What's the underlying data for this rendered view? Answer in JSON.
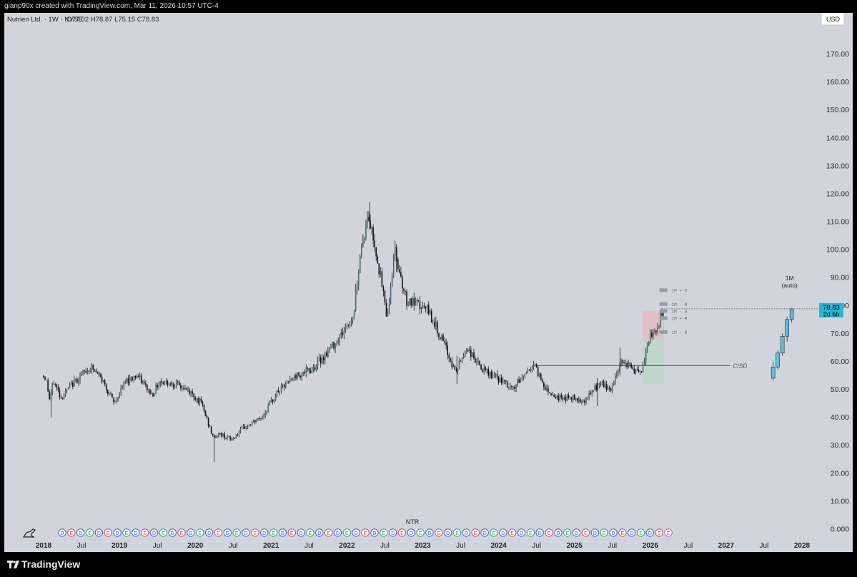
{
  "header": {
    "credit": "gianp90x created with TradingView.com, Mar 11, 2026 10:57 UTC-4"
  },
  "chart_data": {
    "type": "candlestick",
    "symbol_line": "Nutrien Ltd. · 1W · NYSE",
    "ohlc_label": "O77.02  H78.87  L75.15  C78.83",
    "currency": "USD",
    "ylim": [
      0,
      175
    ],
    "y_ticks": [
      "170.00",
      "160.00",
      "150.00",
      "140.00",
      "130.00",
      "120.00",
      "110.00",
      "100.00",
      "90.00",
      "80.00",
      "70.00",
      "60.00",
      "50.00",
      "40.00",
      "30.00",
      "20.00",
      "10.00",
      "0.000"
    ],
    "y_tick_values": [
      170,
      160,
      150,
      140,
      130,
      120,
      110,
      100,
      90,
      80,
      70,
      60,
      50,
      40,
      30,
      20,
      10,
      0
    ],
    "x_ticks": [
      {
        "label": "2018",
        "t": 2018.0,
        "bold": true
      },
      {
        "label": "Jul",
        "t": 2018.5,
        "bold": false
      },
      {
        "label": "2019",
        "t": 2019.0,
        "bold": true
      },
      {
        "label": "Jul",
        "t": 2019.5,
        "bold": false
      },
      {
        "label": "2020",
        "t": 2020.0,
        "bold": true
      },
      {
        "label": "Jul",
        "t": 2020.5,
        "bold": false
      },
      {
        "label": "2021",
        "t": 2021.0,
        "bold": true
      },
      {
        "label": "Jul",
        "t": 2021.5,
        "bold": false
      },
      {
        "label": "2022",
        "t": 2022.0,
        "bold": true
      },
      {
        "label": "Jul",
        "t": 2022.5,
        "bold": false
      },
      {
        "label": "2023",
        "t": 2023.0,
        "bold": true
      },
      {
        "label": "Jul",
        "t": 2023.5,
        "bold": false
      },
      {
        "label": "2024",
        "t": 2024.0,
        "bold": true
      },
      {
        "label": "Jul",
        "t": 2024.5,
        "bold": false
      },
      {
        "label": "2025",
        "t": 2025.0,
        "bold": true
      },
      {
        "label": "Jul",
        "t": 2025.5,
        "bold": false
      },
      {
        "label": "2026",
        "t": 2026.0,
        "bold": true
      },
      {
        "label": "Jul",
        "t": 2026.5,
        "bold": false
      },
      {
        "label": "2027",
        "t": 2027.0,
        "bold": true
      },
      {
        "label": "Jul",
        "t": 2027.5,
        "bold": false
      },
      {
        "label": "2028",
        "t": 2028.0,
        "bold": true
      }
    ],
    "price_path": [
      [
        2018.0,
        55
      ],
      [
        2018.05,
        54
      ],
      [
        2018.1,
        46
      ],
      [
        2018.15,
        53
      ],
      [
        2018.25,
        47
      ],
      [
        2018.4,
        52
      ],
      [
        2018.55,
        56
      ],
      [
        2018.65,
        58
      ],
      [
        2018.8,
        53
      ],
      [
        2018.95,
        45
      ],
      [
        2019.1,
        53
      ],
      [
        2019.25,
        55
      ],
      [
        2019.45,
        48
      ],
      [
        2019.55,
        53
      ],
      [
        2019.75,
        52
      ],
      [
        2019.95,
        49
      ],
      [
        2020.1,
        45
      ],
      [
        2020.25,
        33
      ],
      [
        2020.35,
        34
      ],
      [
        2020.5,
        32
      ],
      [
        2020.65,
        36
      ],
      [
        2020.9,
        40
      ],
      [
        2021.1,
        49
      ],
      [
        2021.35,
        55
      ],
      [
        2021.55,
        57
      ],
      [
        2021.75,
        63
      ],
      [
        2021.9,
        68
      ],
      [
        2022.1,
        76
      ],
      [
        2022.2,
        100
      ],
      [
        2022.3,
        112
      ],
      [
        2022.4,
        100
      ],
      [
        2022.55,
        76
      ],
      [
        2022.65,
        100
      ],
      [
        2022.8,
        82
      ],
      [
        2022.95,
        80
      ],
      [
        2023.1,
        78
      ],
      [
        2023.3,
        66
      ],
      [
        2023.45,
        56
      ],
      [
        2023.6,
        65
      ],
      [
        2023.8,
        57
      ],
      [
        2024.0,
        54
      ],
      [
        2024.2,
        50
      ],
      [
        2024.35,
        55
      ],
      [
        2024.48,
        59
      ],
      [
        2024.65,
        50
      ],
      [
        2024.8,
        47
      ],
      [
        2025.0,
        47
      ],
      [
        2025.15,
        46
      ],
      [
        2025.35,
        52
      ],
      [
        2025.5,
        50
      ],
      [
        2025.65,
        61
      ],
      [
        2025.8,
        57
      ],
      [
        2025.9,
        55
      ],
      [
        2026.0,
        68
      ],
      [
        2026.1,
        71
      ],
      [
        2026.18,
        78
      ]
    ],
    "price_low": [
      [
        2018.1,
        40
      ],
      [
        2020.25,
        24
      ],
      [
        2023.45,
        52
      ],
      [
        2025.3,
        44
      ]
    ],
    "price_high": [
      [
        2022.3,
        117
      ],
      [
        2022.65,
        102
      ],
      [
        2025.6,
        65
      ]
    ],
    "last_price": {
      "value": 78.83,
      "label": "78.83",
      "countdown": "2d 6h"
    },
    "cisd": {
      "label": "CISD",
      "price": 58.5,
      "from": 2024.48,
      "to": 2027.05
    },
    "zone": {
      "from": 2025.9,
      "to": 2026.18,
      "top": 78,
      "mid": 68,
      "bottom": 52
    },
    "levels": [
      {
        "label": "1M + D",
        "price": 85.5
      },
      {
        "label": "1M - M",
        "price": 80.5
      },
      {
        "label": "1M - D",
        "price": 78
      },
      {
        "label": "1M + M",
        "price": 75.5
      },
      {
        "label": "1M - D",
        "price": 70.5
      }
    ],
    "projection": {
      "title": "1M",
      "subtitle": "(auto)",
      "candles": [
        {
          "o": 54,
          "h": 60,
          "l": 53,
          "c": 58
        },
        {
          "o": 58,
          "h": 64,
          "l": 57,
          "c": 63
        },
        {
          "o": 63,
          "h": 70,
          "l": 62,
          "c": 69
        },
        {
          "o": 69,
          "h": 76,
          "l": 67,
          "c": 75
        },
        {
          "o": 75,
          "h": 79,
          "l": 74,
          "c": 78.8
        }
      ]
    },
    "events": {
      "caption": "NTR",
      "markers": [
        "D",
        "E",
        "D",
        "E",
        "D",
        "E",
        "D",
        "E",
        "D",
        "E",
        "D",
        "E",
        "D",
        "E",
        "D",
        "E",
        "D",
        "E",
        "D",
        "E",
        "D",
        "E",
        "D",
        "E",
        "D",
        "E",
        "D",
        "E",
        "D",
        "E",
        "D",
        "E",
        "D",
        "E",
        "D",
        "E",
        "D",
        "E",
        "D",
        "E",
        "D",
        "E",
        "D",
        "E",
        "D",
        "E",
        "D",
        "E",
        "D",
        "E",
        "D",
        "E",
        "D",
        "E",
        "D",
        "E",
        "D",
        "E",
        "D",
        "E",
        "D",
        "E",
        "D",
        "E",
        "D",
        "E",
        "E"
      ]
    }
  },
  "footer": {
    "brand": "TradingView"
  }
}
